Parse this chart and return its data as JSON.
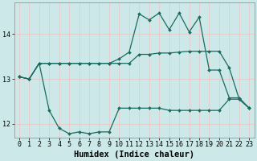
{
  "title": "",
  "xlabel": "Humidex (Indice chaleur)",
  "ylabel": "",
  "bg_color": "#cce8e8",
  "line_color": "#1a6b60",
  "grid_color": "#e8c8c8",
  "xlim": [
    -0.5,
    23.5
  ],
  "ylim": [
    11.7,
    14.7
  ],
  "yticks": [
    12,
    13,
    14
  ],
  "xticks": [
    0,
    1,
    2,
    3,
    4,
    5,
    6,
    7,
    8,
    9,
    10,
    11,
    12,
    13,
    14,
    15,
    16,
    17,
    18,
    19,
    20,
    21,
    22,
    23
  ],
  "line1_x": [
    0,
    1,
    2,
    3,
    4,
    5,
    6,
    7,
    8,
    9,
    10,
    11,
    12,
    13,
    14,
    15,
    16,
    17,
    18,
    19,
    20,
    21,
    22,
    23
  ],
  "line1_y": [
    13.05,
    13.0,
    13.35,
    13.35,
    13.35,
    13.35,
    13.35,
    13.35,
    13.35,
    13.35,
    13.35,
    13.35,
    13.55,
    13.55,
    13.58,
    13.58,
    13.6,
    13.62,
    13.62,
    13.62,
    13.62,
    13.25,
    12.55,
    12.35
  ],
  "line2_x": [
    0,
    1,
    2,
    3,
    4,
    5,
    6,
    7,
    8,
    9,
    10,
    11,
    12,
    13,
    14,
    15,
    16,
    17,
    18,
    19,
    20,
    21,
    22,
    23
  ],
  "line2_y": [
    13.05,
    13.0,
    13.35,
    13.35,
    13.35,
    13.35,
    13.35,
    13.35,
    13.35,
    13.35,
    13.45,
    13.6,
    14.45,
    14.32,
    14.47,
    14.1,
    14.47,
    14.05,
    14.38,
    13.2,
    13.2,
    12.58,
    12.58,
    12.35
  ],
  "line3_x": [
    0,
    1,
    2,
    3,
    4,
    5,
    6,
    7,
    8,
    9,
    10,
    11,
    12,
    13,
    14,
    15,
    16,
    17,
    18,
    19,
    20,
    21,
    22,
    23
  ],
  "line3_y": [
    13.05,
    13.0,
    13.35,
    12.3,
    11.9,
    11.78,
    11.82,
    11.78,
    11.82,
    11.82,
    12.35,
    12.35,
    12.35,
    12.35,
    12.35,
    12.3,
    12.3,
    12.3,
    12.3,
    12.3,
    12.3,
    12.55,
    12.55,
    12.35
  ],
  "marker_size": 2,
  "linewidth": 0.9,
  "tick_fontsize": 6,
  "xlabel_fontsize": 7.5
}
